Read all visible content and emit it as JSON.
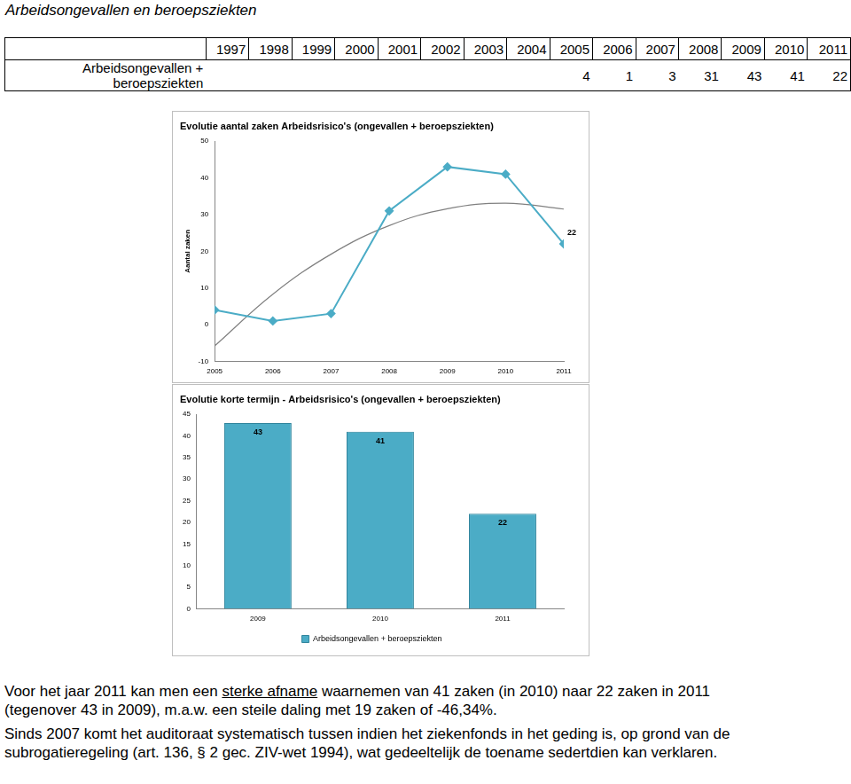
{
  "title": "Arbeidsongevallen en beroepsziekten",
  "table": {
    "header": [
      1997,
      1998,
      1999,
      2000,
      2001,
      2002,
      2003,
      2004,
      2005,
      2006,
      2007,
      2008,
      2009,
      2010,
      2011
    ],
    "rows": [
      {
        "label": "Arbeidsongevallen + beroepsziekten",
        "values": [
          null,
          null,
          null,
          null,
          null,
          null,
          null,
          null,
          4,
          1,
          3,
          31,
          43,
          41,
          22
        ]
      }
    ]
  },
  "chart_data": [
    {
      "type": "line",
      "title": "Evolutie aantal zaken Arbeidsrisico's (ongevallen + beroepsziekten)",
      "y_label": "Aantal zaken",
      "categories": [
        "2005",
        "2006",
        "2007",
        "2008",
        "2009",
        "2010",
        "2011"
      ],
      "series": [
        {
          "name": "Arbeidsongevallen + beroepsziekten",
          "color": "#4bacc6",
          "marker": "diamond",
          "values": [
            4,
            1,
            3,
            31,
            43,
            41,
            22
          ],
          "value_labels": [
            null,
            null,
            null,
            null,
            null,
            null,
            "22"
          ]
        },
        {
          "color": "#808080",
          "marker": "none",
          "line_style": "solid",
          "values": [
            -5.8,
            8.3,
            19.2,
            27,
            31.6,
            33.1,
            31.5
          ]
        }
      ],
      "ylim": [
        -10,
        50
      ],
      "yticks": [
        -10,
        0,
        10,
        20,
        30,
        40,
        50
      ],
      "grid": false
    },
    {
      "type": "bar",
      "title": "Evolutie korte termijn - Arbeidsrisico's (ongevallen + beroepsziekten)",
      "categories": [
        "2009",
        "2010",
        "2011"
      ],
      "series": [
        {
          "name": "Arbeidsongevallen + beroepsziekten",
          "color": "#4bacc6",
          "values": [
            43,
            41,
            22
          ]
        }
      ],
      "ylim": [
        0,
        45
      ],
      "yticks": [
        0,
        5,
        10,
        15,
        20,
        25,
        30,
        35,
        40,
        45
      ],
      "grid": false,
      "data_labels": true,
      "legend": "bottom"
    }
  ],
  "paragraphs": [
    [
      {
        "text": "Voor het jaar 2011 kan men een "
      },
      {
        "text": "sterke afname",
        "underline": true
      },
      {
        "text": " waarnemen van 41 zaken (in 2010) naar 22 zaken  in 2011 (tegenover 43 in 2009), m.a.w. een steile daling met 19 zaken of -46,34%."
      }
    ],
    [
      {
        "text": "Sinds 2007 komt het auditoraat systematisch tussen indien het ziekenfonds in het geding is, op grond van de subrogatieregeling (art. 136, § 2 gec. ZIV-wet 1994), wat gedeeltelijk de toename sedertdien kan verklaren."
      }
    ]
  ]
}
